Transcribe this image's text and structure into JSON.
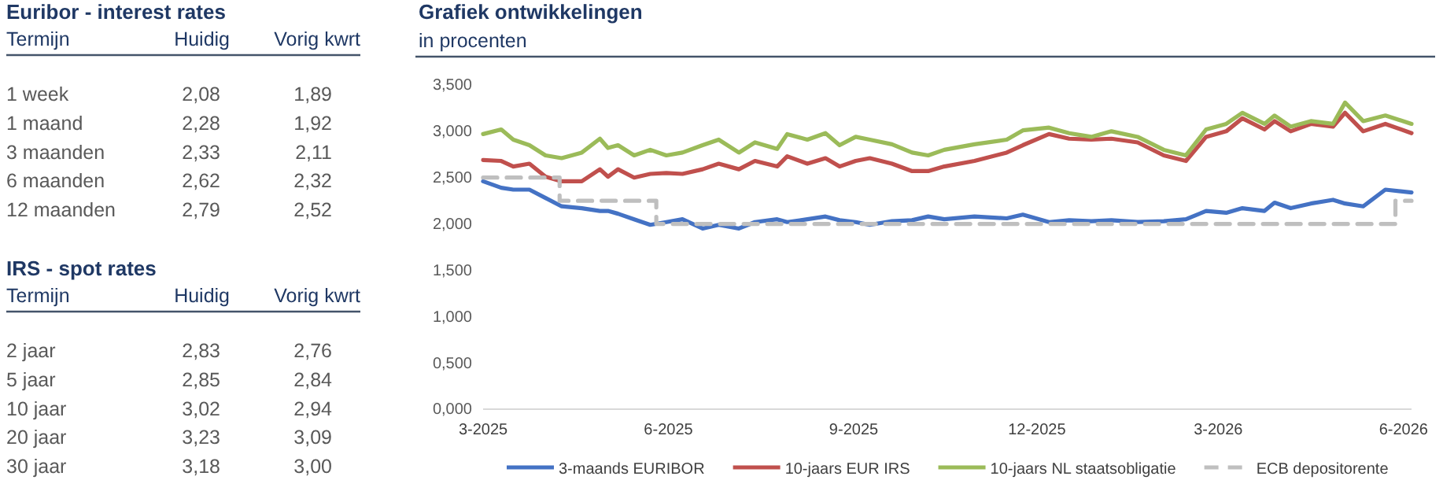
{
  "chart_data": [
    {
      "type": "other",
      "title": "Euribor - interest rates",
      "xlabel": "Termijn",
      "categories": [
        "1 week",
        "1 maand",
        "3 maanden",
        "6 maanden",
        "12 maanden"
      ],
      "series": [
        {
          "name": "Huidig",
          "values": [
            2.08,
            2.28,
            2.33,
            2.62,
            2.79
          ],
          "value_labels": [
            "2,08",
            "2,28",
            "2,33",
            "2,62",
            "2,79"
          ]
        },
        {
          "name": "Vorig kwrt",
          "values": [
            1.89,
            1.92,
            2.11,
            2.32,
            2.52
          ],
          "value_labels": [
            "1,89",
            "1,92",
            "2,11",
            "2,32",
            "2,52"
          ]
        }
      ]
    },
    {
      "type": "other",
      "title": "IRS - spot rates",
      "xlabel": "Termijn",
      "categories": [
        "2 jaar",
        "5 jaar",
        "10 jaar",
        "20 jaar",
        "30 jaar"
      ],
      "series": [
        {
          "name": "Huidig",
          "values": [
            2.83,
            2.85,
            3.02,
            3.23,
            3.18
          ],
          "value_labels": [
            "2,83",
            "2,85",
            "3,02",
            "3,23",
            "3,18"
          ]
        },
        {
          "name": "Vorig kwrt",
          "values": [
            2.76,
            2.84,
            2.94,
            3.09,
            3.0
          ],
          "value_labels": [
            "2,76",
            "2,84",
            "2,94",
            "3,09",
            "3,00"
          ]
        }
      ]
    },
    {
      "type": "line",
      "title": "Grafiek ontwikkelingen",
      "subtitle": "in procenten",
      "legend": "bottom",
      "grid": false,
      "x": [
        "2025-03-01",
        "2025-03-10",
        "2025-03-16",
        "2025-03-24",
        "2025-04-01",
        "2025-04-09",
        "2025-04-19",
        "2025-04-28",
        "2025-05-02",
        "2025-05-07",
        "2025-05-15",
        "2025-05-23",
        "2025-05-31",
        "2025-06-08",
        "2025-06-18",
        "2025-06-26",
        "2025-07-06",
        "2025-07-14",
        "2025-07-25",
        "2025-07-30",
        "2025-08-09",
        "2025-08-18",
        "2025-08-25",
        "2025-09-02",
        "2025-09-09",
        "2025-09-20",
        "2025-09-30",
        "2025-10-08",
        "2025-10-16",
        "2025-10-31",
        "2025-11-16",
        "2025-11-24",
        "2025-12-07",
        "2025-12-17",
        "2025-12-28",
        "2026-01-07",
        "2026-01-20",
        "2026-02-02",
        "2026-02-13",
        "2026-02-23",
        "2026-03-05",
        "2026-03-13",
        "2026-03-24",
        "2026-03-29",
        "2026-04-06",
        "2026-04-16",
        "2026-04-27",
        "2026-05-03",
        "2026-05-12",
        "2026-05-23",
        "2026-06-05"
      ],
      "xlim": [
        "2025-03-01",
        "2026-06-05"
      ],
      "xticks": [
        {
          "value": "2025-03-01",
          "label": "3-2025"
        },
        {
          "value": "2025-06-01",
          "label": "6-2025"
        },
        {
          "value": "2025-09-01",
          "label": "9-2025"
        },
        {
          "value": "2025-12-01",
          "label": "12-2025"
        },
        {
          "value": "2026-03-01",
          "label": "3-2026"
        },
        {
          "value": "2026-06-01",
          "label": "6-2026"
        }
      ],
      "ylim": [
        0,
        3.5
      ],
      "yticks": [
        {
          "value": 0,
          "label": "0,000"
        },
        {
          "value": 0.5,
          "label": "0,500"
        },
        {
          "value": 1,
          "label": "1,000"
        },
        {
          "value": 1.5,
          "label": "1,500"
        },
        {
          "value": 2,
          "label": "2,000"
        },
        {
          "value": 2.5,
          "label": "2,500"
        },
        {
          "value": 3,
          "label": "3,000"
        },
        {
          "value": 3.5,
          "label": "3,500"
        }
      ],
      "series": [
        {
          "name": "3-maands EURIBOR",
          "color": "#4472c4",
          "values": [
            2.46,
            2.39,
            2.37,
            2.37,
            2.28,
            2.19,
            2.17,
            2.14,
            2.14,
            2.11,
            2.05,
            1.99,
            2.02,
            2.05,
            1.95,
            1.99,
            1.95,
            2.02,
            2.05,
            2.02,
            2.05,
            2.08,
            2.04,
            2.02,
            1.99,
            2.03,
            2.04,
            2.08,
            2.05,
            2.08,
            2.06,
            2.1,
            2.02,
            2.04,
            2.03,
            2.04,
            2.02,
            2.03,
            2.05,
            2.14,
            2.12,
            2.17,
            2.14,
            2.23,
            2.17,
            2.22,
            2.26,
            2.22,
            2.19,
            2.37,
            2.34
          ]
        },
        {
          "name": "10-jaars EUR IRS",
          "color": "#c0504d",
          "values": [
            2.69,
            2.68,
            2.62,
            2.65,
            2.51,
            2.46,
            2.46,
            2.59,
            2.51,
            2.59,
            2.5,
            2.54,
            2.55,
            2.54,
            2.59,
            2.65,
            2.59,
            2.68,
            2.62,
            2.73,
            2.65,
            2.71,
            2.62,
            2.68,
            2.71,
            2.65,
            2.57,
            2.57,
            2.62,
            2.68,
            2.77,
            2.85,
            2.97,
            2.92,
            2.91,
            2.92,
            2.88,
            2.74,
            2.68,
            2.94,
            3.0,
            3.14,
            3.02,
            3.11,
            3.0,
            3.08,
            3.05,
            3.2,
            3.0,
            3.08,
            2.98
          ]
        },
        {
          "name": "10-jaars NL staatsobligatie",
          "color": "#9bbb59",
          "values": [
            2.97,
            3.02,
            2.91,
            2.85,
            2.74,
            2.71,
            2.77,
            2.92,
            2.82,
            2.85,
            2.74,
            2.8,
            2.74,
            2.77,
            2.85,
            2.91,
            2.77,
            2.88,
            2.81,
            2.97,
            2.91,
            2.98,
            2.85,
            2.94,
            2.91,
            2.86,
            2.77,
            2.74,
            2.8,
            2.86,
            2.91,
            3.01,
            3.04,
            2.98,
            2.94,
            3.0,
            2.94,
            2.8,
            2.74,
            3.02,
            3.08,
            3.2,
            3.08,
            3.17,
            3.05,
            3.11,
            3.08,
            3.31,
            3.11,
            3.17,
            3.08
          ]
        },
        {
          "name": "ECB depositorente",
          "type": "step",
          "line_style": "dashed",
          "color": "#bfbfbf",
          "x": [
            "2025-03-01",
            "2025-04-08",
            "2025-05-26",
            "2026-05-28",
            "2026-06-05"
          ],
          "values": [
            2.5,
            2.25,
            2.0,
            2.25,
            2.25
          ]
        }
      ]
    }
  ]
}
